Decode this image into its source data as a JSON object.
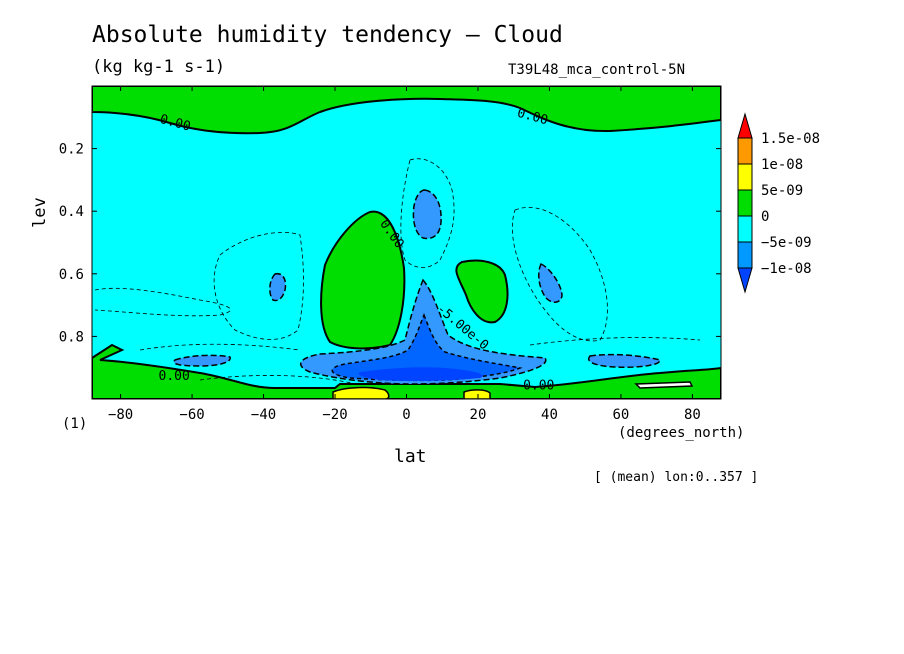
{
  "chart_data": {
    "type": "contour",
    "title": "Absolute humidity tendency — Cloud",
    "units": "(kg kg-1 s-1)",
    "run_name": "T39L48_mca_control-5N",
    "xlabel": "lat",
    "x_units": "(degrees_north)",
    "ylabel": "lev",
    "y_units": "(1)",
    "footnote": "[ (mean) lon:0..357 ]",
    "xlim": [
      -88,
      88
    ],
    "ylim": [
      1.0,
      0.0
    ],
    "x_ticks": [
      -80,
      -60,
      -40,
      -20,
      0,
      20,
      40,
      60,
      80
    ],
    "y_ticks": [
      0.2,
      0.4,
      0.6,
      0.8
    ],
    "colorbar": {
      "levels": [
        "1.5e-08",
        "1e-08",
        "5e-09",
        "0",
        "-5e-09",
        "-1e-08"
      ],
      "colors": [
        "#ff0000",
        "#ff9900",
        "#ffff00",
        "#00dd00",
        "#00ffff",
        "#0099ff",
        "#0044ff"
      ]
    },
    "contour_labels": [
      "0.00",
      "0.00",
      "0.00",
      "0.00",
      "0.00",
      "-5.00e-0"
    ],
    "colors": {
      "positive": "#00dd00",
      "weak_negative": "#00ffff",
      "moderate_negative": "#3399ff",
      "strong_negative": "#0066ff",
      "strongest_negative": "#0044ff",
      "high_positive": "#ffff00"
    }
  }
}
